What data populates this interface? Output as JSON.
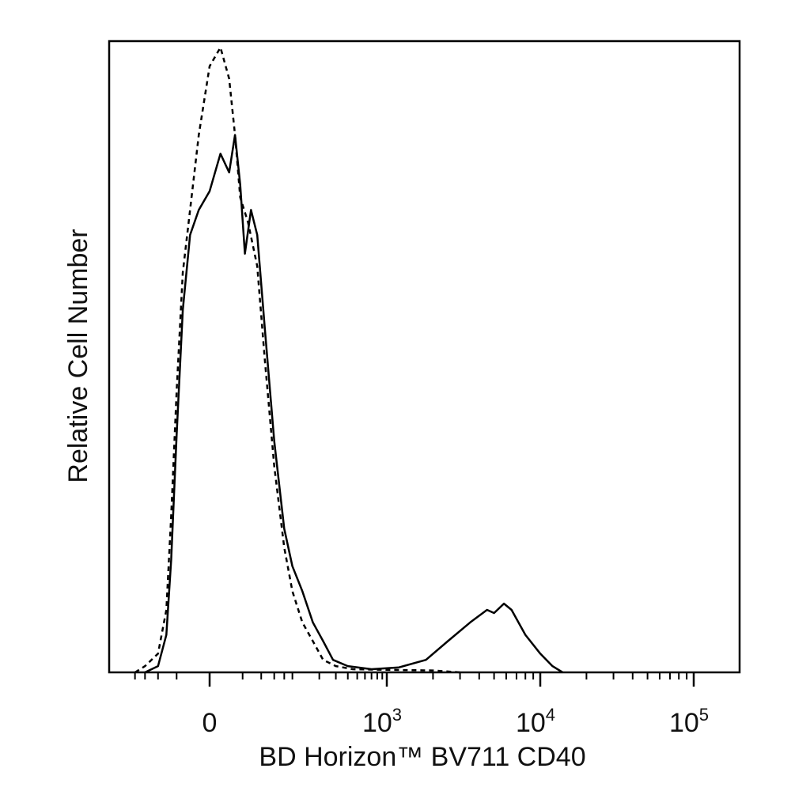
{
  "chart_data": {
    "type": "line",
    "title": "",
    "xlabel": "BD Horizon™ BV711 CD40",
    "ylabel": "Relative Cell Number",
    "x_scale": "biexponential",
    "grid": false,
    "legend": "none",
    "x_ticks": [
      {
        "value": 0,
        "base": "0",
        "exp": ""
      },
      {
        "value": 1000,
        "base": "10",
        "exp": "3"
      },
      {
        "value": 10000,
        "base": "10",
        "exp": "4"
      },
      {
        "value": 100000,
        "base": "10",
        "exp": "5"
      }
    ],
    "series": [
      {
        "style": "solid",
        "color": "#000000",
        "points": [
          [
            -60,
            0.0
          ],
          [
            -40,
            0.01
          ],
          [
            -30,
            0.06
          ],
          [
            -25,
            0.18
          ],
          [
            -20,
            0.38
          ],
          [
            -15,
            0.58
          ],
          [
            -10,
            0.7
          ],
          [
            -5,
            0.74
          ],
          [
            0,
            0.77
          ],
          [
            5,
            0.83
          ],
          [
            10,
            0.8
          ],
          [
            14,
            0.86
          ],
          [
            18,
            0.78
          ],
          [
            22,
            0.67
          ],
          [
            28,
            0.74
          ],
          [
            35,
            0.7
          ],
          [
            45,
            0.55
          ],
          [
            60,
            0.37
          ],
          [
            80,
            0.23
          ],
          [
            100,
            0.17
          ],
          [
            130,
            0.13
          ],
          [
            170,
            0.08
          ],
          [
            220,
            0.05
          ],
          [
            280,
            0.02
          ],
          [
            400,
            0.01
          ],
          [
            700,
            0.005
          ],
          [
            1200,
            0.008
          ],
          [
            1800,
            0.02
          ],
          [
            2500,
            0.05
          ],
          [
            3500,
            0.08
          ],
          [
            4500,
            0.1
          ],
          [
            5000,
            0.095
          ],
          [
            5800,
            0.11
          ],
          [
            6500,
            0.1
          ],
          [
            8000,
            0.06
          ],
          [
            10000,
            0.03
          ],
          [
            12000,
            0.01
          ],
          [
            14000,
            0.0
          ]
        ]
      },
      {
        "style": "dashed",
        "color": "#000000",
        "points": [
          [
            -80,
            0.0
          ],
          [
            -60,
            0.01
          ],
          [
            -40,
            0.03
          ],
          [
            -30,
            0.1
          ],
          [
            -25,
            0.25
          ],
          [
            -20,
            0.45
          ],
          [
            -15,
            0.64
          ],
          [
            -10,
            0.74
          ],
          [
            -5,
            0.86
          ],
          [
            0,
            0.97
          ],
          [
            5,
            1.0
          ],
          [
            10,
            0.95
          ],
          [
            14,
            0.86
          ],
          [
            18,
            0.76
          ],
          [
            25,
            0.72
          ],
          [
            35,
            0.65
          ],
          [
            45,
            0.5
          ],
          [
            60,
            0.33
          ],
          [
            80,
            0.2
          ],
          [
            100,
            0.13
          ],
          [
            130,
            0.08
          ],
          [
            170,
            0.05
          ],
          [
            220,
            0.02
          ],
          [
            300,
            0.01
          ],
          [
            450,
            0.005
          ],
          [
            1000,
            0.004
          ],
          [
            2000,
            0.003
          ],
          [
            3000,
            0.0
          ]
        ]
      }
    ]
  }
}
